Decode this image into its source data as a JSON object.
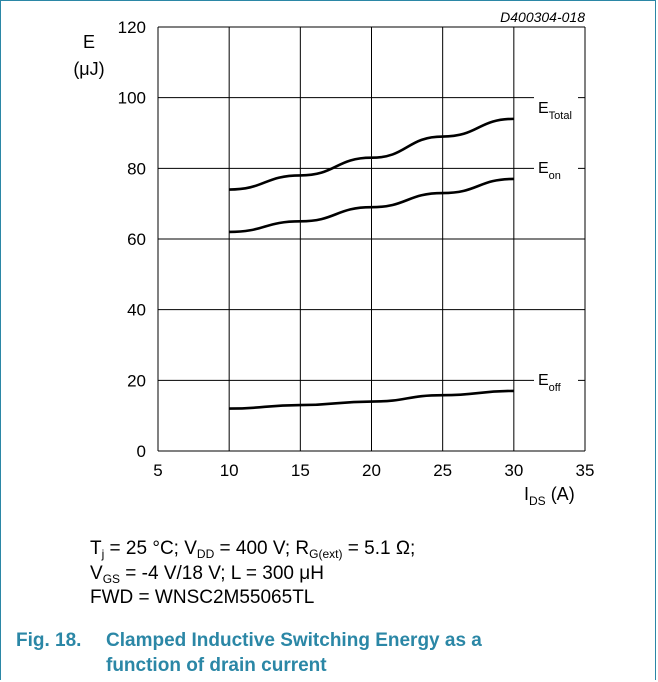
{
  "chart_data": {
    "type": "line",
    "code": "D400304-018",
    "ylabel": "E",
    "yunit": "(μJ)",
    "xlabel_main": "I",
    "xlabel_sub": "DS",
    "xunit": " (A)",
    "xlim": [
      5,
      35
    ],
    "ylim": [
      0,
      120
    ],
    "xticks": [
      "5",
      "10",
      "15",
      "20",
      "25",
      "30",
      "35"
    ],
    "yticks": [
      "0",
      "20",
      "40",
      "60",
      "80",
      "100",
      "120"
    ],
    "grid": true,
    "series": [
      {
        "name": "Total",
        "label_main": "E",
        "label_sub": "Total",
        "x": [
          10,
          15,
          20,
          25,
          30
        ],
        "y": [
          74,
          78,
          83,
          89,
          94
        ]
      },
      {
        "name": "on",
        "label_main": "E",
        "label_sub": "on",
        "x": [
          10,
          15,
          20,
          25,
          30
        ],
        "y": [
          62,
          65,
          69,
          73,
          77
        ]
      },
      {
        "name": "off",
        "label_main": "E",
        "label_sub": "off",
        "x": [
          10,
          15,
          20,
          25,
          30
        ],
        "y": [
          12,
          13,
          14,
          15.8,
          17
        ]
      }
    ]
  },
  "conditions": {
    "line1": {
      "tj": "T",
      "tj_sub": "j",
      "a": " = 25 °C; V",
      "vdd_sub": "DD",
      "b": " = 400 V; R",
      "rg_sub": "G(ext)",
      "c": " = 5.1 Ω;"
    },
    "line2": {
      "v": "V",
      "vgs_sub": "GS",
      "a": " = -4 V/18 V; L = 300 μH"
    },
    "line3": "FWD = WNSC2M55065TL"
  },
  "caption": {
    "number": "Fig. 18.",
    "line1": "Clamped Inductive Switching Energy as a",
    "line2": "function of drain current"
  }
}
